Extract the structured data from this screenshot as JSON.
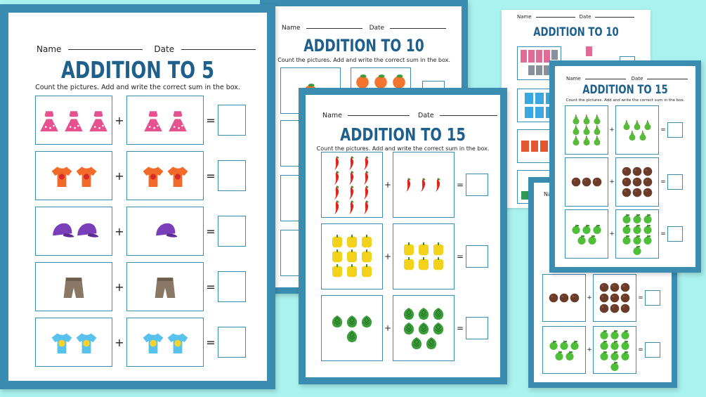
{
  "sheet_a10b": {
    "name_label": "Name",
    "date_label": "Date",
    "title": "ADDITION TO 10"
  },
  "sheet_a5": {
    "name_label": "Name",
    "date_label": "Date",
    "title": "ADDITION TO 5",
    "instructions": "Count the pictures. Add and write the correct sum in the box.",
    "plus": "+",
    "equals": "=",
    "rows": [
      {
        "item": "pink-dress-icon",
        "left": 3,
        "right": 2
      },
      {
        "item": "orange-tshirt-icon",
        "left": 2,
        "right": 2
      },
      {
        "item": "purple-cap-icon",
        "left": 2,
        "right": 1
      },
      {
        "item": "brown-shorts-icon",
        "left": 1,
        "right": 1
      },
      {
        "item": "blue-tshirt-icon",
        "left": 2,
        "right": 2
      }
    ]
  },
  "sheet_a10": {
    "name_label": "Name",
    "date_label": "Date",
    "title": "ADDITION TO 10",
    "instructions": "Count the pictures. Add and write the correct sum in the box.",
    "plus": "+",
    "equals": "="
  },
  "sheet_a15": {
    "name_label": "Name",
    "date_label": "Date",
    "title": "ADDITION TO 15",
    "instructions": "Count the pictures. Add and write the correct sum in the box.",
    "plus": "+",
    "equals": "=",
    "rows": [
      {
        "item": "red-chili-icon",
        "left": 12,
        "right": 3
      },
      {
        "item": "yellow-pepper-icon",
        "left": 9,
        "right": 6
      },
      {
        "item": "artichoke-icon",
        "left": 4,
        "right": 8
      }
    ]
  },
  "sheet_a15s": {
    "name_label": "Name",
    "date_label": "Date",
    "title": "ADDITION TO 15",
    "instructions": "Count the pictures. Add and write the correct sum in the box.",
    "plus": "+",
    "equals": "=",
    "rows": [
      {
        "item": "green-pear-icon",
        "left": 9,
        "right": 5
      },
      {
        "item": "brown-nut-icon",
        "left": 3,
        "right": 9
      },
      {
        "item": "green-apple-icon",
        "left": 5,
        "right": 10
      }
    ]
  },
  "sheet_a15b": {
    "name_label": "Na",
    "plus": "+",
    "equals": "=",
    "rows": [
      {
        "item": "brown-nut-icon",
        "left": 3,
        "right": 9
      },
      {
        "item": "green-apple-icon",
        "left": 5,
        "right": 10
      }
    ]
  },
  "colors": {
    "background": "#a9f2ef",
    "border": "#3b8cb1",
    "title": "#1f5f8c"
  }
}
